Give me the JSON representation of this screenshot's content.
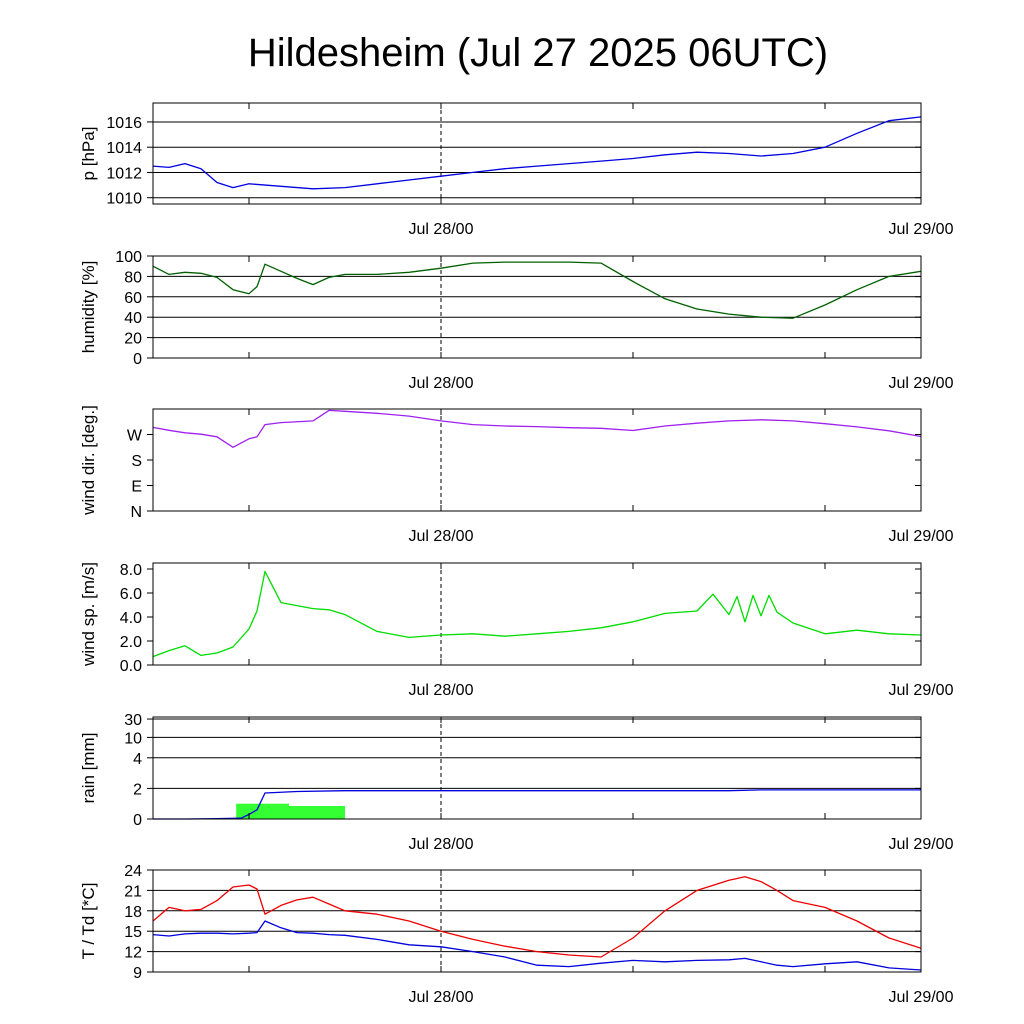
{
  "title": "Hildesheim (Jul 27 2025 06UTC)",
  "x_labels": [
    "Jul 28/00",
    "Jul 29/00"
  ],
  "chart_data": [
    {
      "type": "line",
      "id": "pressure",
      "ylabel": "p [hPa]",
      "ylim": [
        1009.5,
        1017.5
      ],
      "yticks": [
        1010,
        1012,
        1014,
        1016
      ],
      "yticklabels": [
        "1010",
        "1012",
        "1014",
        "1016"
      ],
      "grid": true,
      "x_hours": [
        0,
        1,
        2,
        3,
        4,
        5,
        6,
        8,
        10,
        12,
        14,
        16,
        18,
        20,
        22,
        24,
        26,
        28,
        30,
        32,
        34,
        36,
        38,
        40,
        42,
        44,
        46,
        48
      ],
      "series": [
        {
          "color": "#0000e0",
          "values": [
            1012.5,
            1012.4,
            1012.7,
            1012.3,
            1011.2,
            1010.8,
            1011.1,
            1010.9,
            1010.7,
            1010.8,
            1011.1,
            1011.4,
            1011.7,
            1012.0,
            1012.3,
            1012.5,
            1012.7,
            1012.9,
            1013.1,
            1013.4,
            1013.6,
            1013.5,
            1013.3,
            1013.5,
            1014.0,
            1015.1,
            1016.1,
            1016.4
          ]
        }
      ]
    },
    {
      "type": "line",
      "id": "humidity",
      "ylabel": "humidity [%]",
      "ylim": [
        0,
        100
      ],
      "yticks": [
        0,
        20,
        40,
        60,
        80,
        100
      ],
      "yticklabels": [
        "0",
        "20",
        "40",
        "60",
        "80",
        "100"
      ],
      "grid": true,
      "x_hours": [
        0,
        1,
        2,
        3,
        4,
        5,
        6,
        6.5,
        7,
        8,
        9,
        10,
        11,
        12,
        14,
        16,
        18,
        20,
        22,
        24,
        26,
        28,
        30,
        32,
        34,
        36,
        38,
        40,
        42,
        44,
        46,
        48
      ],
      "series": [
        {
          "color": "#006000",
          "values": [
            90,
            82,
            84,
            83,
            79,
            67,
            63,
            70,
            92,
            85,
            78,
            72,
            79,
            82,
            82,
            84,
            88,
            93,
            94,
            94,
            94,
            93,
            75,
            58,
            48,
            43,
            40,
            39,
            52,
            67,
            80,
            85
          ]
        }
      ]
    },
    {
      "type": "line",
      "id": "wind_direction",
      "ylabel": "wind dir. [deg.]",
      "ylim": [
        0,
        360
      ],
      "yticks": [
        0,
        90,
        180,
        270
      ],
      "yticklabels": [
        "N",
        "E",
        "S",
        "W"
      ],
      "grid": false,
      "x_hours": [
        0,
        1,
        2,
        3,
        4,
        5,
        6,
        6.5,
        7,
        8,
        10,
        11,
        12,
        14,
        16,
        18,
        20,
        22,
        24,
        26,
        28,
        30,
        32,
        34,
        36,
        38,
        40,
        42,
        44,
        46,
        48
      ],
      "series": [
        {
          "color": "#a020f0",
          "values": [
            295,
            285,
            276,
            271,
            262,
            225,
            255,
            262,
            305,
            312,
            318,
            355,
            352,
            345,
            335,
            318,
            305,
            300,
            298,
            294,
            292,
            284,
            300,
            310,
            318,
            322,
            318,
            308,
            297,
            283,
            263
          ]
        }
      ]
    },
    {
      "type": "line",
      "id": "wind_speed",
      "ylabel": "wind sp. [m/s]",
      "ylim": [
        0,
        8.5
      ],
      "yticks": [
        0,
        2,
        4,
        6,
        8
      ],
      "yticklabels": [
        "0.0",
        "2.0",
        "4.0",
        "6.0",
        "8.0"
      ],
      "grid": false,
      "x_hours": [
        0,
        1,
        2,
        3,
        4,
        5,
        6,
        6.5,
        7,
        8,
        10,
        11,
        12,
        14,
        16,
        18,
        20,
        22,
        24,
        26,
        28,
        30,
        32,
        34,
        35,
        36,
        36.5,
        37,
        37.5,
        38,
        38.5,
        39,
        40,
        42,
        44,
        46,
        48
      ],
      "series": [
        {
          "color": "#00dd00",
          "values": [
            0.7,
            1.2,
            1.6,
            0.8,
            1.0,
            1.5,
            3.0,
            4.5,
            7.8,
            5.2,
            4.7,
            4.6,
            4.2,
            2.8,
            2.3,
            2.5,
            2.6,
            2.4,
            2.6,
            2.8,
            3.1,
            3.6,
            4.3,
            4.5,
            5.9,
            4.2,
            5.7,
            3.6,
            5.8,
            4.1,
            5.8,
            4.4,
            3.5,
            2.6,
            2.9,
            2.6,
            2.5
          ]
        }
      ]
    },
    {
      "type": "line+bar",
      "id": "rain",
      "ylabel": "rain [mm]",
      "ylim": [
        0,
        32
      ],
      "yticks": [
        0,
        2,
        4,
        10,
        30
      ],
      "yticklabels": [
        "0",
        "2",
        "4",
        "10",
        "30"
      ],
      "grid": true,
      "x_hours": [
        0,
        2,
        4,
        5.5,
        6,
        6.5,
        7,
        9,
        12,
        24,
        30,
        36,
        38,
        42,
        48
      ],
      "series": [
        {
          "color": "#0000e0",
          "values": [
            0,
            0,
            0.02,
            0.05,
            0.3,
            0.6,
            1.7,
            1.8,
            1.85,
            1.85,
            1.85,
            1.85,
            1.9,
            1.9,
            1.9
          ]
        }
      ],
      "bars": {
        "color": "#33ff33",
        "items": [
          {
            "x_start": 5.2,
            "x_end": 8.5,
            "value": 1.0
          },
          {
            "x_start": 8.5,
            "x_end": 12.0,
            "value": 0.85
          }
        ]
      }
    },
    {
      "type": "line",
      "id": "temperature",
      "ylabel": "T / Td [*C]",
      "ylim": [
        9,
        24
      ],
      "yticks": [
        9,
        12,
        15,
        18,
        21,
        24
      ],
      "yticklabels": [
        "9",
        "12",
        "15",
        "18",
        "21",
        "24"
      ],
      "grid": true,
      "x_hours": [
        0,
        1,
        2,
        3,
        4,
        5,
        6,
        6.5,
        7,
        8,
        9,
        10,
        11,
        12,
        14,
        16,
        18,
        20,
        22,
        24,
        26,
        28,
        30,
        32,
        34,
        36,
        37,
        38,
        39,
        40,
        42,
        44,
        46,
        48
      ],
      "series": [
        {
          "color": "#ee0000",
          "values": [
            16.5,
            18.5,
            18.0,
            18.2,
            19.5,
            21.5,
            21.8,
            21.2,
            17.5,
            18.8,
            19.6,
            20.0,
            19.0,
            18.0,
            17.5,
            16.5,
            15.0,
            13.8,
            12.8,
            12.0,
            11.5,
            11.2,
            14.0,
            18.0,
            21.0,
            22.5,
            23.0,
            22.3,
            21.0,
            19.5,
            18.5,
            16.5,
            14.0,
            12.5
          ]
        },
        {
          "color": "#0000dd",
          "values": [
            14.5,
            14.3,
            14.6,
            14.7,
            14.7,
            14.6,
            14.7,
            14.8,
            16.5,
            15.5,
            14.8,
            14.7,
            14.5,
            14.4,
            13.8,
            13.0,
            12.7,
            12.0,
            11.2,
            10.0,
            9.8,
            10.3,
            10.7,
            10.5,
            10.7,
            10.8,
            11.0,
            10.5,
            10.0,
            9.8,
            10.2,
            10.5,
            9.6,
            9.3
          ]
        }
      ]
    }
  ]
}
